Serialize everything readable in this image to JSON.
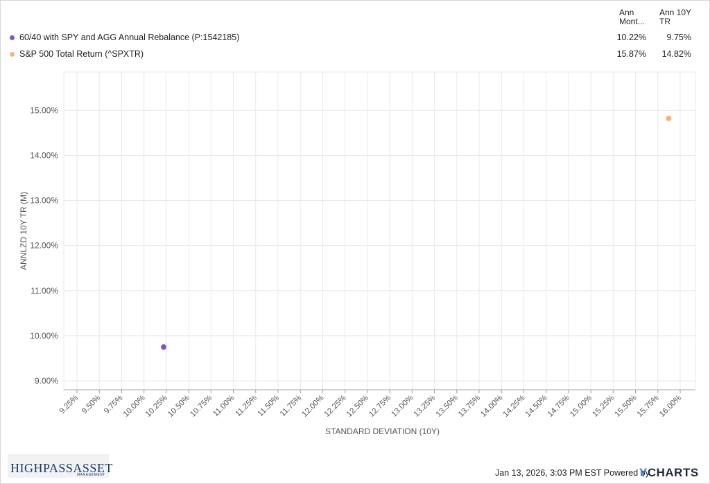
{
  "legend": {
    "col1_header": "Ann\nMont...",
    "col2_header": "Ann 10Y\nTR",
    "entries": [
      {
        "label": "60/40 with SPY and AGG Annual Rebalance (P:1542185)",
        "col1": "10.22%",
        "col2": "9.75%",
        "color": "#7f52d1"
      },
      {
        "label": "S&P 500 Total Return (^SPXTR)",
        "col1": "15.87%",
        "col2": "14.82%",
        "color": "#f7b37c"
      }
    ]
  },
  "chart_data": {
    "type": "scatter",
    "xlabel": "STANDARD DEVIATION (10Y)",
    "ylabel": "ANNLZD 10Y TR (M)",
    "xlim": [
      9.25,
      16.0
    ],
    "ylim": [
      8.8,
      15.85
    ],
    "x_ticks": [
      "9.25%",
      "9.50%",
      "9.75%",
      "10.00%",
      "10.25%",
      "10.50%",
      "10.75%",
      "11.00%",
      "11.25%",
      "11.50%",
      "11.75%",
      "12.00%",
      "12.25%",
      "12.50%",
      "12.75%",
      "13.00%",
      "13.25%",
      "13.50%",
      "13.75%",
      "14.00%",
      "14.25%",
      "14.50%",
      "14.75%",
      "15.00%",
      "15.25%",
      "15.50%",
      "15.75%",
      "16.00%"
    ],
    "y_ticks": [
      "9.00%",
      "10.00%",
      "11.00%",
      "12.00%",
      "13.00%",
      "14.00%",
      "15.00%"
    ],
    "grid": true,
    "legend_position": "top",
    "series": [
      {
        "name": "60/40 with SPY and AGG Annual Rebalance (P:1542185)",
        "x": [
          10.22
        ],
        "y": [
          9.75
        ],
        "color": "#7f52d1"
      },
      {
        "name": "S&P 500 Total Return (^SPXTR)",
        "x": [
          15.87
        ],
        "y": [
          14.82
        ],
        "color": "#f7b37c"
      }
    ]
  },
  "footer": {
    "timestamp": "Jan 13, 2026, 3:03 PM EST Powered by",
    "brand_y": "Y",
    "brand_rest": "CHARTS",
    "company_logo_text": "HIGHPASSASSET",
    "company_logo_sub": "MANAGEMENT"
  }
}
